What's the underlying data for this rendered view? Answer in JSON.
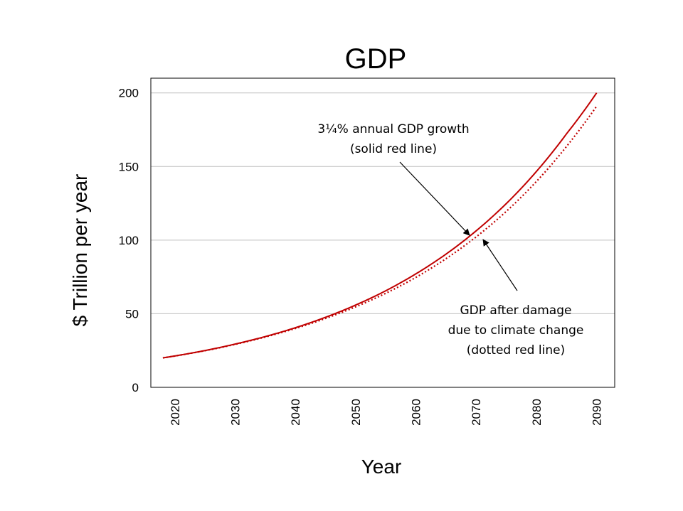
{
  "chart_data": {
    "type": "line",
    "title": "GDP",
    "xlabel": "Year",
    "ylabel": "$ Trillion per year",
    "xlim": [
      2016,
      2093
    ],
    "ylim": [
      0,
      210
    ],
    "x_ticks": [
      "2020",
      "2030",
      "2040",
      "2050",
      "2060",
      "2070",
      "2080",
      "2090"
    ],
    "y_ticks": [
      "0",
      "50",
      "100",
      "150",
      "200"
    ],
    "grid": "horizontal",
    "colors": {
      "line": "#c00000",
      "grid": "#bfbfbf",
      "frame": "#000000"
    },
    "series": [
      {
        "name": "3¼% annual GDP growth",
        "style": "solid",
        "x": [
          2018,
          2025,
          2030,
          2035,
          2040,
          2045,
          2050,
          2055,
          2060,
          2065,
          2070,
          2075,
          2080,
          2085,
          2090
        ],
        "values": [
          20.0,
          25.0,
          29.4,
          34.5,
          40.5,
          47.6,
          55.9,
          65.6,
          77.1,
          90.5,
          106.3,
          124.8,
          146.6,
          172.2,
          200.0
        ]
      },
      {
        "name": "GDP after damage due to climate change",
        "style": "dotted",
        "x": [
          2018,
          2025,
          2030,
          2035,
          2040,
          2045,
          2050,
          2055,
          2060,
          2065,
          2070,
          2075,
          2080,
          2085,
          2090
        ],
        "values": [
          20.0,
          24.9,
          29.2,
          34.2,
          40.0,
          46.8,
          54.7,
          63.9,
          74.7,
          87.4,
          102.2,
          119.5,
          139.8,
          163.6,
          191.0
        ]
      }
    ],
    "annotations": [
      {
        "lines": [
          "3¼% annual GDP growth",
          "(solid red line)"
        ],
        "arrow_to": {
          "series": 0,
          "x": 2069.5
        }
      },
      {
        "lines": [
          "GDP after damage",
          "due to climate change",
          "(dotted red line)"
        ],
        "arrow_to": {
          "series": 1,
          "x": 2070.5
        }
      }
    ]
  }
}
